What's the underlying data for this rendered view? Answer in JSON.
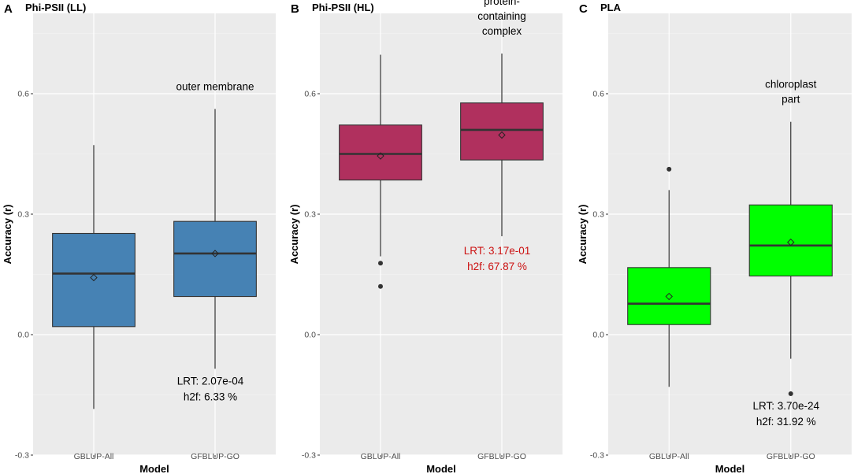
{
  "chart_data": [
    {
      "type": "box",
      "panel": "A",
      "title": "Phi-PSII (LL)",
      "xlabel": "Model",
      "ylabel": "Accuracy (r)",
      "ylim": [
        -0.3,
        0.8
      ],
      "yticks": [
        -0.3,
        0.0,
        0.3,
        0.6
      ],
      "ytick_labels": [
        "-0.3",
        "0.0",
        "0.3",
        "0.6"
      ],
      "categories": [
        "GBLUP-All",
        "GFBLUP-GO"
      ],
      "fill_color": "#4682b4",
      "boxes": [
        {
          "name": "GBLUP-All",
          "whisker_low": -0.185,
          "q1": 0.02,
          "median": 0.152,
          "q3": 0.252,
          "whisker_high": 0.472,
          "mean": 0.142,
          "outliers": []
        },
        {
          "name": "GFBLUP-GO",
          "whisker_low": -0.085,
          "q1": 0.095,
          "median": 0.202,
          "q3": 0.282,
          "whisker_high": 0.562,
          "mean": 0.202,
          "outliers": []
        }
      ],
      "annotations": {
        "term_lines": [
          "outer membrane"
        ],
        "lrt": "LRT: 2.07e-04",
        "h2f": "h2f:  6.33 %",
        "stat_color": "#000000"
      }
    },
    {
      "type": "box",
      "panel": "B",
      "title": "Phi-PSII (HL)",
      "xlabel": "Model",
      "ylabel": "Accuracy (r)",
      "ylim": [
        -0.3,
        0.8
      ],
      "yticks": [
        -0.3,
        0.0,
        0.3,
        0.6
      ],
      "ytick_labels": [
        "-0.3",
        "0.0",
        "0.3",
        "0.6"
      ],
      "categories": [
        "GBLUP-All",
        "GFBLUP-GO"
      ],
      "fill_color": "#b0305e",
      "boxes": [
        {
          "name": "GBLUP-All",
          "whisker_low": 0.195,
          "q1": 0.385,
          "median": 0.45,
          "q3": 0.522,
          "whisker_high": 0.697,
          "mean": 0.445,
          "outliers": [
            0.178,
            0.12
          ]
        },
        {
          "name": "GFBLUP-GO",
          "whisker_low": 0.245,
          "q1": 0.435,
          "median": 0.51,
          "q3": 0.577,
          "whisker_high": 0.7,
          "mean": 0.497,
          "outliers": []
        }
      ],
      "annotations": {
        "term_lines": [
          "protein-",
          "containing",
          "complex"
        ],
        "lrt": "LRT: 3.17e-01",
        "h2f": "h2f:  67.87 %",
        "stat_color": "#cc1111"
      }
    },
    {
      "type": "box",
      "panel": "C",
      "title": "PLA",
      "xlabel": "Model",
      "ylabel": "Accuracy (r)",
      "ylim": [
        -0.3,
        0.8
      ],
      "yticks": [
        -0.3,
        0.0,
        0.3,
        0.6
      ],
      "ytick_labels": [
        "-0.3",
        "0.0",
        "0.3",
        "0.6"
      ],
      "categories": [
        "GBLUP-All",
        "GFBLUP-GO"
      ],
      "fill_color": "#00ff00",
      "boxes": [
        {
          "name": "GBLUP-All",
          "whisker_low": -0.13,
          "q1": 0.025,
          "median": 0.077,
          "q3": 0.167,
          "whisker_high": 0.36,
          "mean": 0.095,
          "outliers": [
            0.412
          ]
        },
        {
          "name": "GFBLUP-GO",
          "whisker_low": -0.06,
          "q1": 0.146,
          "median": 0.222,
          "q3": 0.323,
          "whisker_high": 0.53,
          "mean": 0.23,
          "outliers": [
            -0.147
          ]
        }
      ],
      "annotations": {
        "term_lines": [
          "chloroplast",
          "part"
        ],
        "lrt": "LRT: 3.70e-24",
        "h2f": "h2f:  31.92 %",
        "stat_color": "#000000"
      }
    }
  ]
}
